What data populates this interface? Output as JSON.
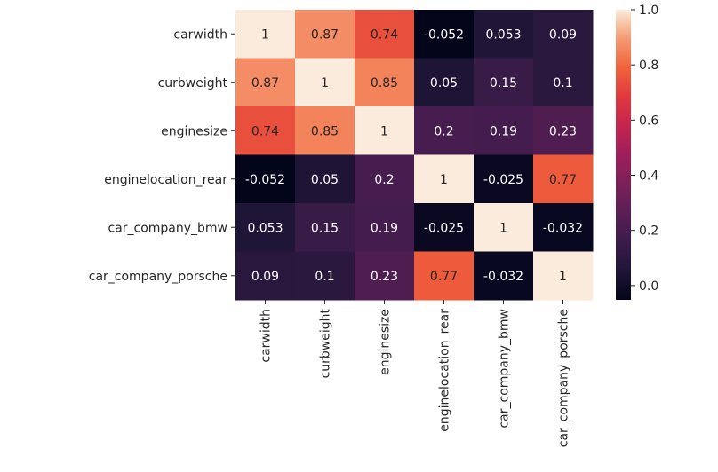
{
  "chart_data": {
    "type": "heatmap",
    "title": "",
    "xlabel": "",
    "ylabel": "",
    "rows": [
      "carwidth",
      "curbweight",
      "enginesize",
      "enginelocation_rear",
      "car_company_bmw",
      "car_company_porsche"
    ],
    "columns": [
      "carwidth",
      "curbweight",
      "enginesize",
      "enginelocation_rear",
      "car_company_bmw",
      "car_company_porsche"
    ],
    "values": [
      [
        1,
        0.87,
        0.74,
        -0.052,
        0.053,
        0.09
      ],
      [
        0.87,
        1,
        0.85,
        0.05,
        0.15,
        0.1
      ],
      [
        0.74,
        0.85,
        1,
        0.2,
        0.19,
        0.23
      ],
      [
        -0.052,
        0.05,
        0.2,
        1,
        -0.025,
        0.77
      ],
      [
        0.053,
        0.15,
        0.19,
        -0.025,
        1,
        -0.032
      ],
      [
        0.09,
        0.1,
        0.23,
        0.77,
        -0.032,
        1
      ]
    ],
    "annotations": [
      [
        "1",
        "0.87",
        "0.74",
        "-0.052",
        "0.053",
        "0.09"
      ],
      [
        "0.87",
        "1",
        "0.85",
        "0.05",
        "0.15",
        "0.1"
      ],
      [
        "0.74",
        "0.85",
        "1",
        "0.2",
        "0.19",
        "0.23"
      ],
      [
        "-0.052",
        "0.05",
        "0.2",
        "1",
        "-0.025",
        "0.77"
      ],
      [
        "0.053",
        "0.15",
        "0.19",
        "-0.025",
        "1",
        "-0.032"
      ],
      [
        "0.09",
        "0.1",
        "0.23",
        "0.77",
        "-0.032",
        "1"
      ]
    ],
    "colormap": "rocket",
    "vmin": -0.052,
    "vmax": 1.0,
    "colorbar": {
      "ticks": [
        0.0,
        0.2,
        0.4,
        0.6,
        0.8,
        1.0
      ],
      "tick_labels": [
        "0.0",
        "0.2",
        "0.4",
        "0.6",
        "0.8",
        "1.0"
      ]
    },
    "colormap_stops": [
      {
        "v": 0.0,
        "color": "#03051a"
      },
      {
        "v": 0.1,
        "color": "#1f1537"
      },
      {
        "v": 0.2,
        "color": "#3b1b49"
      },
      {
        "v": 0.3,
        "color": "#5a1e55"
      },
      {
        "v": 0.4,
        "color": "#7b2059"
      },
      {
        "v": 0.5,
        "color": "#9e1f5a"
      },
      {
        "v": 0.6,
        "color": "#c4254f"
      },
      {
        "v": 0.7,
        "color": "#e1383f"
      },
      {
        "v": 0.8,
        "color": "#f0633b"
      },
      {
        "v": 0.9,
        "color": "#f59a73"
      },
      {
        "v": 0.95,
        "color": "#f7c2a2"
      },
      {
        "v": 1.0,
        "color": "#faebdd"
      }
    ]
  }
}
